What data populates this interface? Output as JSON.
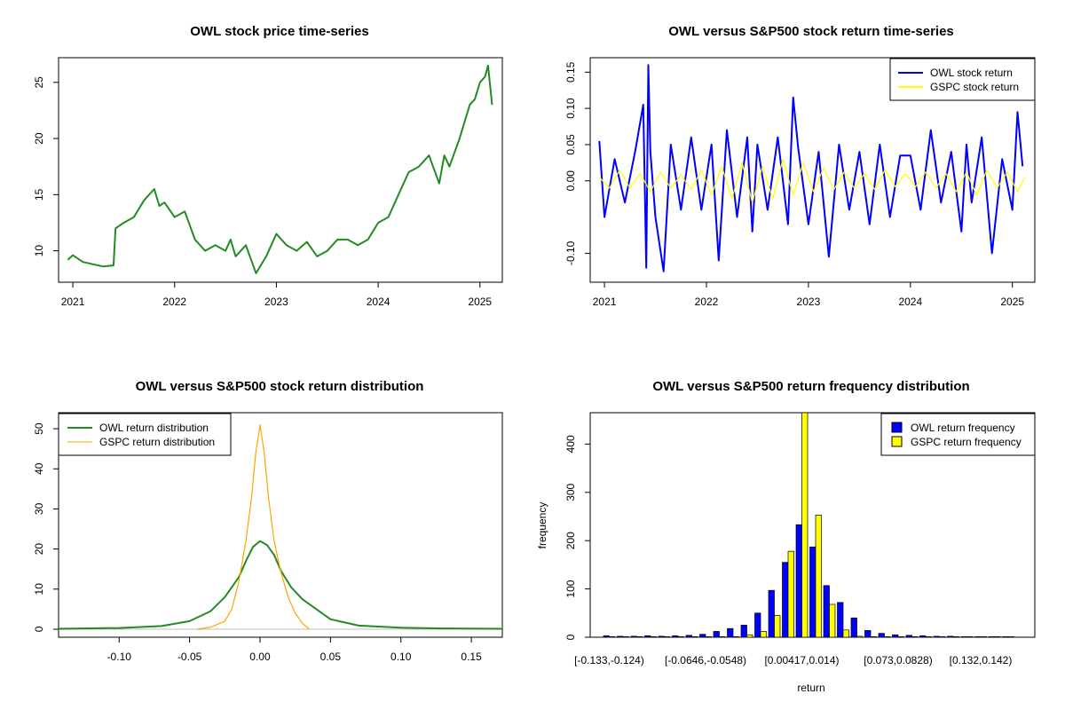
{
  "colors": {
    "owl_price": "#228B22",
    "owl_return": "#0000FF",
    "gspc_return": "#FFFF00",
    "owl_density": "#228B22",
    "gspc_density": "#FFA500",
    "owl_bar": "#0000FF",
    "gspc_bar": "#FFFF00"
  },
  "chart_data": [
    {
      "type": "line",
      "title": "OWL stock price time-series",
      "xlabel": "",
      "ylabel": "",
      "xlim": [
        2020.86,
        2025.22
      ],
      "ylim": [
        7.2,
        27.2
      ],
      "xticks": [
        2021,
        2022,
        2023,
        2024,
        2025
      ],
      "xtick_labels": [
        "2021",
        "2022",
        "2023",
        "2024",
        "2025"
      ],
      "yticks": [
        10,
        15,
        20,
        25
      ],
      "ytick_labels": [
        "10",
        "15",
        "20",
        "25"
      ],
      "series": [
        {
          "name": "OWL",
          "x": [
            2020.95,
            2021.0,
            2021.1,
            2021.2,
            2021.3,
            2021.4,
            2021.42,
            2021.5,
            2021.6,
            2021.7,
            2021.8,
            2021.85,
            2021.9,
            2022.0,
            2022.1,
            2022.2,
            2022.3,
            2022.4,
            2022.5,
            2022.55,
            2022.6,
            2022.7,
            2022.8,
            2022.9,
            2023.0,
            2023.1,
            2023.2,
            2023.3,
            2023.4,
            2023.5,
            2023.6,
            2023.7,
            2023.8,
            2023.9,
            2024.0,
            2024.1,
            2024.2,
            2024.3,
            2024.4,
            2024.5,
            2024.6,
            2024.65,
            2024.7,
            2024.8,
            2024.9,
            2024.95,
            2025.0,
            2025.05,
            2025.08,
            2025.12
          ],
          "y": [
            9.2,
            9.6,
            9.0,
            8.8,
            8.6,
            8.7,
            12.0,
            12.5,
            13.0,
            14.5,
            15.5,
            14.0,
            14.3,
            13.0,
            13.5,
            11.0,
            10.0,
            10.5,
            10.0,
            11.0,
            9.5,
            10.5,
            8.0,
            9.5,
            11.5,
            10.5,
            10.0,
            10.8,
            9.5,
            10.0,
            11.0,
            11.0,
            10.5,
            11.0,
            12.5,
            13.0,
            15.0,
            17.0,
            17.5,
            18.5,
            16.0,
            18.5,
            17.5,
            20.0,
            23.0,
            23.5,
            25.0,
            25.5,
            26.5,
            23.0
          ]
        }
      ]
    },
    {
      "type": "line",
      "title": "OWL versus S&P500 stock return time-series",
      "xlabel": "",
      "ylabel": "",
      "xlim": [
        2020.86,
        2025.22
      ],
      "ylim": [
        -0.14,
        0.17
      ],
      "xticks": [
        2021,
        2022,
        2023,
        2024,
        2025
      ],
      "xtick_labels": [
        "2021",
        "2022",
        "2023",
        "2024",
        "2025"
      ],
      "yticks": [
        -0.1,
        0.0,
        0.05,
        0.1,
        0.15
      ],
      "ytick_labels": [
        "-0.10",
        "0.00",
        "0.05",
        "0.10",
        "0.15"
      ],
      "legend": "top-right",
      "series": [
        {
          "name": "OWL stock return",
          "x": [
            2020.95,
            2021.0,
            2021.1,
            2021.2,
            2021.3,
            2021.38,
            2021.41,
            2021.43,
            2021.45,
            2021.5,
            2021.58,
            2021.65,
            2021.75,
            2021.85,
            2021.95,
            2022.05,
            2022.12,
            2022.2,
            2022.3,
            2022.4,
            2022.45,
            2022.5,
            2022.6,
            2022.7,
            2022.8,
            2022.85,
            2022.9,
            2023.0,
            2023.1,
            2023.2,
            2023.3,
            2023.4,
            2023.5,
            2023.6,
            2023.7,
            2023.8,
            2023.9,
            2024.0,
            2024.1,
            2024.2,
            2024.3,
            2024.4,
            2024.5,
            2024.55,
            2024.6,
            2024.7,
            2024.8,
            2024.9,
            2025.0,
            2025.05,
            2025.1
          ],
          "y": [
            0.055,
            -0.05,
            0.03,
            -0.03,
            0.04,
            0.105,
            -0.12,
            0.16,
            0.04,
            -0.05,
            -0.125,
            0.05,
            -0.04,
            0.06,
            -0.04,
            0.05,
            -0.11,
            0.07,
            -0.05,
            0.06,
            -0.07,
            0.05,
            -0.04,
            0.06,
            -0.06,
            0.115,
            0.045,
            -0.06,
            0.04,
            -0.105,
            0.05,
            -0.04,
            0.04,
            -0.06,
            0.05,
            -0.05,
            0.035,
            0.035,
            -0.04,
            0.07,
            -0.03,
            0.04,
            -0.07,
            0.05,
            -0.03,
            0.06,
            -0.1,
            0.03,
            -0.04,
            0.095,
            0.02
          ]
        },
        {
          "name": "GSPC stock return",
          "x": [
            2020.95,
            2021.05,
            2021.15,
            2021.25,
            2021.35,
            2021.45,
            2021.55,
            2021.65,
            2021.75,
            2021.85,
            2021.95,
            2022.05,
            2022.15,
            2022.25,
            2022.35,
            2022.45,
            2022.55,
            2022.65,
            2022.75,
            2022.85,
            2022.95,
            2023.05,
            2023.15,
            2023.25,
            2023.35,
            2023.45,
            2023.55,
            2023.65,
            2023.75,
            2023.85,
            2023.95,
            2024.05,
            2024.15,
            2024.25,
            2024.35,
            2024.45,
            2024.55,
            2024.65,
            2024.75,
            2024.85,
            2024.95,
            2025.05,
            2025.12
          ],
          "y": [
            0.005,
            -0.01,
            0.015,
            -0.01,
            0.01,
            -0.015,
            0.012,
            -0.01,
            0.008,
            -0.012,
            0.015,
            -0.02,
            0.02,
            -0.025,
            0.025,
            -0.03,
            0.02,
            -0.025,
            0.03,
            -0.02,
            0.025,
            -0.015,
            0.018,
            -0.012,
            0.012,
            -0.01,
            0.01,
            -0.012,
            0.015,
            -0.008,
            0.01,
            -0.008,
            0.012,
            -0.01,
            0.01,
            -0.015,
            0.012,
            -0.02,
            0.015,
            -0.01,
            0.012,
            -0.015,
            0.005
          ]
        }
      ]
    },
    {
      "type": "line",
      "title": "OWL versus S&P500 stock return distribution",
      "xlabel": "",
      "ylabel": "",
      "xlim": [
        -0.143,
        0.172
      ],
      "ylim": [
        -2,
        54
      ],
      "xticks": [
        -0.1,
        -0.05,
        0.0,
        0.05,
        0.1,
        0.15
      ],
      "xtick_labels": [
        "-0.10",
        "-0.05",
        "0.00",
        "0.05",
        "0.10",
        "0.15"
      ],
      "yticks": [
        0,
        10,
        20,
        30,
        40,
        50
      ],
      "ytick_labels": [
        "0",
        "10",
        "20",
        "30",
        "40",
        "50"
      ],
      "legend": "top-left",
      "series": [
        {
          "name": "OWL return distribution",
          "x": [
            -0.143,
            -0.1,
            -0.07,
            -0.05,
            -0.035,
            -0.025,
            -0.015,
            -0.01,
            -0.005,
            0.0,
            0.005,
            0.01,
            0.015,
            0.022,
            0.03,
            0.04,
            0.05,
            0.07,
            0.1,
            0.13,
            0.172
          ],
          "y": [
            0.1,
            0.3,
            0.8,
            2.0,
            4.5,
            8.0,
            13.0,
            17.0,
            20.5,
            22.0,
            21.0,
            18.5,
            14.5,
            10.5,
            7.5,
            5.0,
            2.5,
            0.9,
            0.4,
            0.2,
            0.1
          ]
        },
        {
          "name": "GSPC return distribution",
          "x": [
            -0.045,
            -0.035,
            -0.025,
            -0.02,
            -0.015,
            -0.01,
            -0.006,
            -0.003,
            0.0,
            0.003,
            0.006,
            0.01,
            0.015,
            0.02,
            0.025,
            0.03,
            0.035
          ],
          "y": [
            0.0,
            0.5,
            2.0,
            5.0,
            12.0,
            22.0,
            33.0,
            44.0,
            51.0,
            44.0,
            33.0,
            22.0,
            14.0,
            8.0,
            4.0,
            1.5,
            0.0
          ]
        }
      ]
    },
    {
      "type": "bar",
      "title": "OWL versus S&P500 return frequency distribution",
      "xlabel": "return",
      "ylabel": "frequency",
      "ylim": [
        0,
        465
      ],
      "yticks": [
        0,
        100,
        200,
        300,
        400
      ],
      "ytick_labels": [
        "0",
        "100",
        "200",
        "300",
        "400"
      ],
      "shown_category_labels": [
        "[-0.133,-0.124)",
        "[-0.0646,-0.0548)",
        "[0.00417,0.014)",
        "[0.073,0.0828)",
        "[0.132,0.142)"
      ],
      "shown_category_index": [
        0,
        7,
        14,
        21,
        27
      ],
      "legend": "top-right",
      "series": [
        {
          "name": "OWL return frequency",
          "values": [
            3,
            2,
            2,
            3,
            2,
            3,
            4,
            6,
            12,
            18,
            25,
            50,
            97,
            155,
            233,
            187,
            107,
            72,
            40,
            14,
            8,
            5,
            4,
            3,
            2,
            2,
            1,
            1,
            1,
            1
          ]
        },
        {
          "name": "GSPC return frequency",
          "values": [
            0,
            0,
            0,
            0,
            0,
            0,
            0,
            1,
            0,
            1,
            5,
            12,
            45,
            178,
            465,
            253,
            68,
            15,
            2,
            0,
            0,
            0,
            0,
            0,
            0,
            0,
            0,
            0,
            0,
            0
          ]
        }
      ]
    }
  ]
}
